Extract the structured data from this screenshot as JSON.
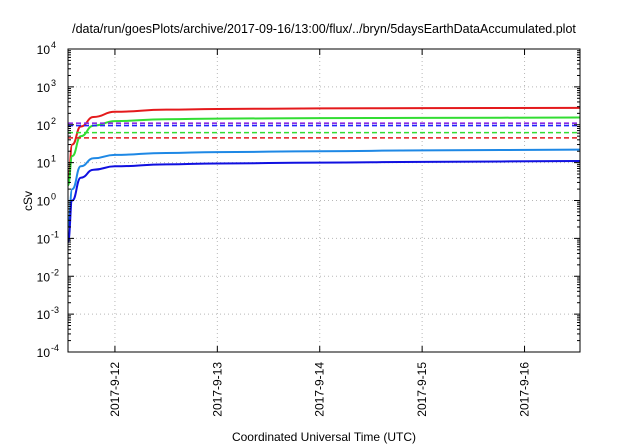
{
  "chart_data": {
    "type": "line",
    "title": "/data/run/goesPlots/archive/2017-09-16/13:00/flux/../bryn/5daysEarthDataAccumulated.plot",
    "xlabel": "Coordinated Universal Time (UTC)",
    "ylabel": "cSv",
    "y_scale": "log",
    "ylim": [
      0.0001,
      10000
    ],
    "y_ticks": [
      {
        "value": 0.0001,
        "base": "10",
        "exp": "-4"
      },
      {
        "value": 0.001,
        "base": "10",
        "exp": "-3"
      },
      {
        "value": 0.01,
        "base": "10",
        "exp": "-2"
      },
      {
        "value": 0.1,
        "base": "10",
        "exp": "-1"
      },
      {
        "value": 1,
        "base": "10",
        "exp": "0"
      },
      {
        "value": 10,
        "base": "10",
        "exp": "1"
      },
      {
        "value": 100,
        "base": "10",
        "exp": "2"
      },
      {
        "value": 1000,
        "base": "10",
        "exp": "3"
      },
      {
        "value": 10000,
        "base": "10",
        "exp": "4"
      }
    ],
    "xlim": [
      "2017-09-11 13:00",
      "2017-09-16 13:00"
    ],
    "x_ticks": [
      "2017-9-12",
      "2017-9-13",
      "2017-9-14",
      "2017-9-15",
      "2017-9-16"
    ],
    "grid": true,
    "series": [
      {
        "color": "#e41a1c",
        "style": "solid",
        "x": [
          "2017-09-11 13:00",
          "2017-09-11 14:00",
          "2017-09-11 16:00",
          "2017-09-11 19:00",
          "2017-09-12 00:00",
          "2017-09-12 12:00",
          "2017-09-13 00:00",
          "2017-09-14 00:00",
          "2017-09-15 00:00",
          "2017-09-16 13:00"
        ],
        "values": [
          3,
          30,
          90,
          160,
          220,
          250,
          260,
          270,
          275,
          280
        ]
      },
      {
        "color": "#33dd33",
        "style": "solid",
        "x": [
          "2017-09-11 13:00",
          "2017-09-11 14:00",
          "2017-09-11 16:00",
          "2017-09-11 19:00",
          "2017-09-12 00:00",
          "2017-09-12 12:00",
          "2017-09-13 00:00",
          "2017-09-14 00:00",
          "2017-09-15 00:00",
          "2017-09-16 13:00"
        ],
        "values": [
          2.5,
          15,
          50,
          95,
          125,
          140,
          145,
          150,
          152,
          155
        ]
      },
      {
        "color": "#1e88e5",
        "style": "solid",
        "x": [
          "2017-09-11 13:00",
          "2017-09-11 14:00",
          "2017-09-11 16:00",
          "2017-09-11 19:00",
          "2017-09-12 00:00",
          "2017-09-12 12:00",
          "2017-09-13 00:00",
          "2017-09-14 00:00",
          "2017-09-15 00:00",
          "2017-09-16 13:00"
        ],
        "values": [
          0.2,
          2,
          8,
          13,
          16,
          18,
          19,
          20,
          21,
          22
        ]
      },
      {
        "color": "#1010e0",
        "style": "solid",
        "x": [
          "2017-09-11 13:00",
          "2017-09-11 14:00",
          "2017-09-11 16:00",
          "2017-09-11 19:00",
          "2017-09-12 00:00",
          "2017-09-12 12:00",
          "2017-09-13 00:00",
          "2017-09-14 00:00",
          "2017-09-15 00:00",
          "2017-09-16 13:00"
        ],
        "values": [
          0.08,
          1,
          4,
          6.5,
          8,
          9,
          9.5,
          10,
          10.5,
          11
        ]
      },
      {
        "color": "#8a2be2",
        "style": "dashed",
        "x": [
          "2017-09-11 13:00",
          "2017-09-16 13:00"
        ],
        "values": [
          110,
          110
        ]
      },
      {
        "color": "#2020ff",
        "style": "dashed",
        "x": [
          "2017-09-11 13:00",
          "2017-09-16 13:00"
        ],
        "values": [
          95,
          95
        ]
      },
      {
        "color": "#33dd33",
        "style": "dashed",
        "x": [
          "2017-09-11 13:00",
          "2017-09-16 13:00"
        ],
        "values": [
          62,
          62
        ]
      },
      {
        "color": "#e41a1c",
        "style": "dashed",
        "x": [
          "2017-09-11 13:00",
          "2017-09-16 13:00"
        ],
        "values": [
          45,
          45
        ]
      }
    ]
  }
}
